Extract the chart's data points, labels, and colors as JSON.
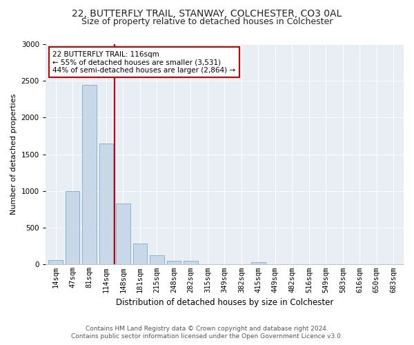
{
  "title1": "22, BUTTERFLY TRAIL, STANWAY, COLCHESTER, CO3 0AL",
  "title2": "Size of property relative to detached houses in Colchester",
  "xlabel": "Distribution of detached houses by size in Colchester",
  "ylabel": "Number of detached properties",
  "categories": [
    "14sqm",
    "47sqm",
    "81sqm",
    "114sqm",
    "148sqm",
    "181sqm",
    "215sqm",
    "248sqm",
    "282sqm",
    "315sqm",
    "349sqm",
    "382sqm",
    "415sqm",
    "449sqm",
    "482sqm",
    "516sqm",
    "549sqm",
    "583sqm",
    "616sqm",
    "650sqm",
    "683sqm"
  ],
  "values": [
    60,
    1000,
    2450,
    1650,
    830,
    290,
    130,
    55,
    50,
    5,
    5,
    5,
    30,
    5,
    5,
    5,
    5,
    5,
    5,
    5,
    5
  ],
  "bar_color": "#c8d8e8",
  "bar_edgecolor": "#7aaac8",
  "redline_x": 3.5,
  "annotation_text": "22 BUTTERFLY TRAIL: 116sqm\n← 55% of detached houses are smaller (3,531)\n44% of semi-detached houses are larger (2,864) →",
  "annotation_box_color": "#ffffff",
  "annotation_box_edgecolor": "#cc0000",
  "redline_color": "#cc0000",
  "ylim": [
    0,
    3000
  ],
  "yticks": [
    0,
    500,
    1000,
    1500,
    2000,
    2500,
    3000
  ],
  "footer1": "Contains HM Land Registry data © Crown copyright and database right 2024.",
  "footer2": "Contains public sector information licensed under the Open Government Licence v3.0.",
  "fig_background": "#ffffff",
  "plot_background": "#e8eef4",
  "title1_fontsize": 10,
  "title2_fontsize": 9,
  "xlabel_fontsize": 8.5,
  "ylabel_fontsize": 8,
  "tick_fontsize": 7.5,
  "annotation_fontsize": 7.5,
  "footer_fontsize": 6.5
}
